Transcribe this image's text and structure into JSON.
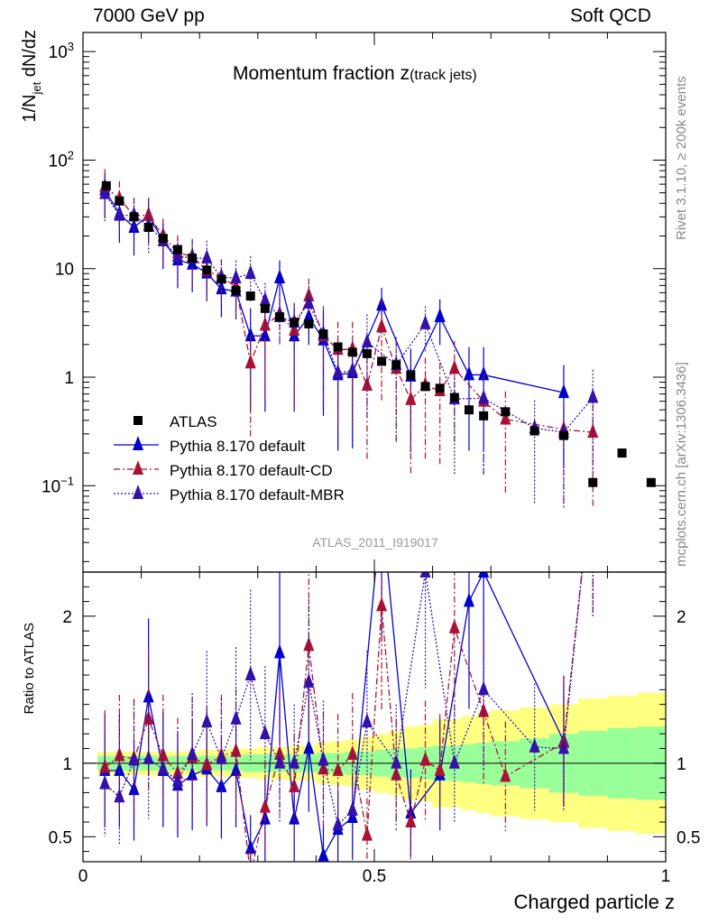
{
  "header": {
    "left": "7000 GeV pp",
    "right": "Soft QCD"
  },
  "side_labels": {
    "rivet": "Rivet 3.1.10,  ≥ 200k events",
    "mcplots": "mcplots.cern.ch [arXiv:1306.3436]"
  },
  "chart_data": {
    "type": "scatter",
    "title_main": "Momentum fraction ",
    "title_var": "z",
    "title_sub": "(track jets)",
    "watermark": "ATLAS_2011_I919017",
    "xlabel": "Charged particle z",
    "ylabel_main": "1/N",
    "ylabel_sub": "jet",
    "ylabel_tail": " dN/dz",
    "ratio_ylabel": "Ratio to ATLAS",
    "xlim": [
      0,
      1
    ],
    "ylim_main": [
      0.016,
      1500
    ],
    "yscale_main": "log",
    "ylim_ratio": [
      0.33,
      2.3
    ],
    "x_ticks": [
      0,
      0.5,
      1
    ],
    "x_tick_labels": [
      "0",
      "0.5",
      "1"
    ],
    "y_ticks_main": [
      {
        "base": "10",
        "exp": "3",
        "plain": ""
      },
      {
        "base": "10",
        "exp": "2",
        "plain": ""
      },
      {
        "base": "",
        "exp": "",
        "plain": "10"
      },
      {
        "base": "",
        "exp": "",
        "plain": "1"
      },
      {
        "base": "10",
        "exp": "−1",
        "plain": ""
      }
    ],
    "y_tick_values_main": [
      1000,
      100,
      10,
      1,
      0.1
    ],
    "y_ticks_ratio": [
      2,
      1,
      0.5
    ],
    "y_tick_labels_ratio": [
      "2",
      "1",
      "0.5"
    ],
    "series": [
      {
        "name": "ATLAS",
        "marker": "square",
        "color": "#000000",
        "x": [
          0.04,
          0.0625,
          0.0875,
          0.1125,
          0.1375,
          0.1625,
          0.1875,
          0.2125,
          0.2375,
          0.2625,
          0.2875,
          0.3125,
          0.3375,
          0.3625,
          0.3875,
          0.4125,
          0.4375,
          0.4625,
          0.4875,
          0.5125,
          0.5375,
          0.5625,
          0.5875,
          0.6125,
          0.6375,
          0.6625,
          0.6875,
          0.725,
          0.775,
          0.825,
          0.875,
          0.925,
          0.975
        ],
        "y": [
          58,
          42,
          30,
          24,
          19,
          15,
          12.5,
          9.7,
          8.0,
          6.3,
          5.6,
          4.3,
          3.6,
          3.2,
          3.1,
          2.5,
          1.9,
          1.7,
          1.65,
          1.4,
          1.3,
          1.05,
          0.82,
          0.79,
          0.65,
          0.5,
          0.44,
          0.48,
          0.32,
          0.29,
          0.107,
          0.2,
          0.107
        ]
      },
      {
        "name": "Pythia 8.170 default",
        "marker": "triangle",
        "color": "#0000cc",
        "line": "solid",
        "x": [
          0.0375,
          0.0625,
          0.0875,
          0.1125,
          0.1375,
          0.1625,
          0.1875,
          0.2125,
          0.2375,
          0.2625,
          0.2875,
          0.3125,
          0.3375,
          0.3625,
          0.3875,
          0.4125,
          0.4375,
          0.4625,
          0.5125,
          0.5625,
          0.6125,
          0.6625,
          0.6875,
          0.825
        ],
        "y": [
          53,
          32,
          24,
          31,
          18,
          12,
          11,
          9.1,
          6.5,
          6.2,
          2.4,
          2.4,
          8.2,
          2.4,
          3.6,
          2.2,
          1.05,
          1.1,
          4.6,
          1.02,
          3.6,
          1.05,
          1.05,
          0.72
        ],
        "ratio": [
          0.95,
          0.95,
          0.82,
          1.45,
          0.95,
          0.85,
          0.92,
          0.96,
          0.84,
          0.95,
          0.42,
          0.62,
          1.75,
          0.62,
          1.1,
          0.37,
          0.55,
          0.63,
          2.75,
          0.66,
          0.92,
          2.1,
          2.3,
          1.15
        ]
      },
      {
        "name": "Pythia 8.170 default-CD",
        "marker": "triangle",
        "color": "#aa1133",
        "line": "dashdot",
        "x": [
          0.0375,
          0.0625,
          0.0875,
          0.1125,
          0.1375,
          0.1625,
          0.1875,
          0.2125,
          0.2375,
          0.2625,
          0.2875,
          0.3125,
          0.3375,
          0.3625,
          0.3875,
          0.4125,
          0.4375,
          0.4625,
          0.4875,
          0.5125,
          0.5375,
          0.5625,
          0.5875,
          0.6125,
          0.6375,
          0.6875,
          0.725,
          0.825,
          0.875
        ],
        "y": [
          57,
          44,
          31,
          31,
          20,
          14,
          13,
          9.6,
          8.4,
          6.8,
          1.35,
          3.0,
          3.8,
          2.7,
          5.6,
          2.4,
          1.8,
          1.8,
          0.84,
          2.9,
          1.2,
          0.62,
          0.84,
          0.75,
          1.2,
          0.6,
          0.41,
          0.33,
          0.31
        ],
        "ratio": [
          0.97,
          1.05,
          1.03,
          1.3,
          1.05,
          0.93,
          1.04,
          0.99,
          1.05,
          1.08,
          0.24,
          0.7,
          1.06,
          0.84,
          1.8,
          0.96,
          0.95,
          1.06,
          0.51,
          2.07,
          0.92,
          0.6,
          1.02,
          0.95,
          1.92,
          1.35,
          0.91,
          1.14,
          3.0
        ]
      },
      {
        "name": "Pythia 8.170 default-MBR",
        "marker": "triangle",
        "color": "#3311aa",
        "line": "dotted",
        "x": [
          0.0375,
          0.0625,
          0.0875,
          0.1125,
          0.1375,
          0.1625,
          0.1875,
          0.2125,
          0.2375,
          0.2625,
          0.2875,
          0.3125,
          0.3375,
          0.3625,
          0.3875,
          0.4125,
          0.4375,
          0.4625,
          0.4875,
          0.5375,
          0.5875,
          0.6375,
          0.6875,
          0.775,
          0.825,
          0.875
        ],
        "y": [
          49,
          31,
          31,
          25,
          18,
          13,
          12.5,
          12.5,
          8.3,
          8.2,
          9.0,
          5.1,
          3.6,
          3.2,
          4.8,
          2.5,
          1.1,
          1.15,
          2.1,
          1.3,
          3.1,
          0.63,
          0.64,
          0.34,
          0.31,
          0.65
        ],
        "ratio": [
          0.86,
          0.77,
          1.02,
          1.03,
          0.96,
          0.88,
          1.06,
          1.28,
          1.03,
          1.3,
          1.6,
          1.2,
          1.0,
          1.0,
          1.55,
          1.02,
          0.58,
          0.68,
          1.28,
          1.0,
          2.3,
          1.0,
          1.5,
          1.11,
          1.1,
          3.0
        ]
      }
    ],
    "uncertainty_bands": {
      "edges": [
        0.025,
        0.05,
        0.075,
        0.1,
        0.125,
        0.15,
        0.175,
        0.2,
        0.225,
        0.25,
        0.275,
        0.3,
        0.325,
        0.35,
        0.375,
        0.4,
        0.425,
        0.45,
        0.475,
        0.5,
        0.525,
        0.55,
        0.575,
        0.6,
        0.625,
        0.65,
        0.675,
        0.7,
        0.75,
        0.8,
        0.85,
        0.9,
        0.95,
        1.0
      ],
      "stat": [
        0.05,
        0.05,
        0.05,
        0.05,
        0.05,
        0.05,
        0.05,
        0.05,
        0.05,
        0.05,
        0.06,
        0.06,
        0.06,
        0.06,
        0.06,
        0.07,
        0.07,
        0.08,
        0.08,
        0.09,
        0.1,
        0.1,
        0.11,
        0.12,
        0.12,
        0.13,
        0.14,
        0.15,
        0.17,
        0.2,
        0.22,
        0.24,
        0.25
      ],
      "total": [
        0.08,
        0.08,
        0.08,
        0.08,
        0.08,
        0.08,
        0.08,
        0.09,
        0.09,
        0.1,
        0.1,
        0.11,
        0.11,
        0.12,
        0.12,
        0.14,
        0.15,
        0.16,
        0.18,
        0.2,
        0.22,
        0.25,
        0.26,
        0.3,
        0.3,
        0.32,
        0.34,
        0.36,
        0.38,
        0.4,
        0.44,
        0.46,
        0.48
      ]
    }
  }
}
